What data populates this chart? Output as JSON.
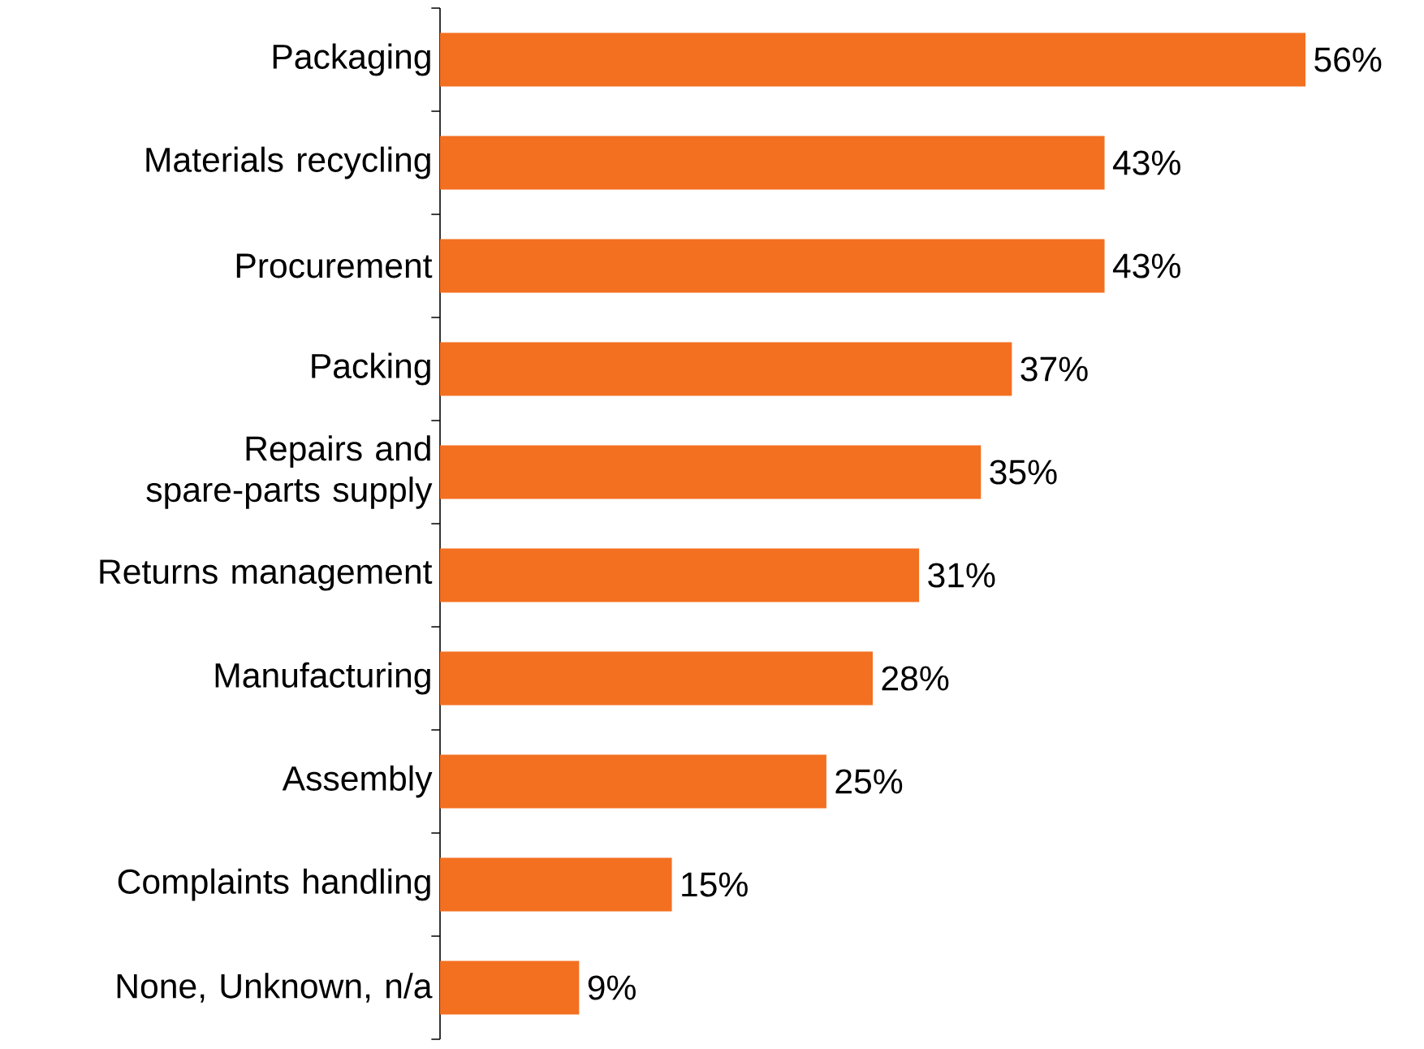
{
  "chart_data": {
    "type": "bar",
    "orientation": "horizontal",
    "color": "#f37021",
    "categories": [
      "Packaging",
      "Materials recycling",
      "Procurement",
      "Packing",
      "Repairs and spare-parts supply",
      "Returns management",
      "Manufacturing",
      "Assembly",
      "Complaints handling",
      "None, Unknown, n/a"
    ],
    "values": [
      56,
      43,
      43,
      37,
      35,
      31,
      28,
      25,
      15,
      9
    ],
    "value_labels": [
      "56%",
      "43%",
      "43%",
      "37%",
      "35%",
      "31%",
      "28%",
      "25%",
      "15%",
      "9%"
    ]
  }
}
